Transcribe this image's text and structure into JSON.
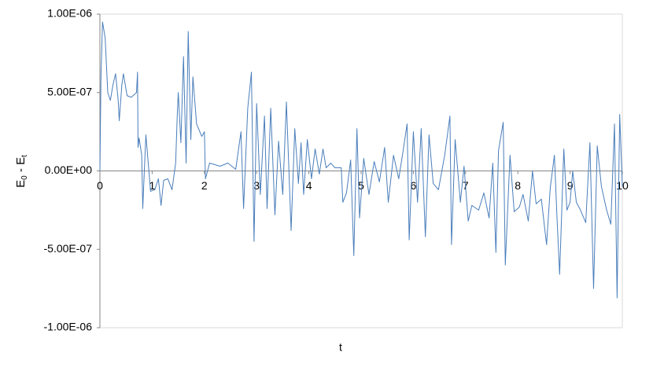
{
  "chart_data": {
    "type": "line",
    "xlabel": "t",
    "ylabel": [
      "E",
      "0",
      " - E",
      "t"
    ],
    "xlim": [
      0,
      10
    ],
    "xticks": [
      0,
      1,
      2,
      3,
      4,
      5,
      6,
      7,
      8,
      9,
      10
    ],
    "ylim": [
      -1e-06,
      1e-06
    ],
    "yticks": [
      {
        "value": -1e-06,
        "label": "-1.00E-06"
      },
      {
        "value": -5e-07,
        "label": "-5.00E-07"
      },
      {
        "value": 0,
        "label": "0.00E+00"
      },
      {
        "value": 5e-07,
        "label": "5.00E-07"
      },
      {
        "value": 1e-06,
        "label": "1.00E-06"
      }
    ],
    "grid": false,
    "series": [
      {
        "color": "#4a7ebb",
        "x": [
          0,
          0.02,
          0.05,
          0.1,
          0.15,
          0.2,
          0.25,
          0.3,
          0.35,
          0.37,
          0.42,
          0.45,
          0.52,
          0.6,
          0.7,
          0.72,
          0.73,
          0.75,
          0.8,
          0.82,
          0.85,
          0.88,
          0.93,
          0.97,
          1.05,
          1.12,
          1.17,
          1.22,
          1.3,
          1.38,
          1.45,
          1.48,
          1.5,
          1.55,
          1.6,
          1.65,
          1.69,
          1.74,
          1.78,
          1.85,
          1.95,
          2.0,
          2.02,
          2.1,
          2.3,
          2.45,
          2.6,
          2.7,
          2.75,
          2.83,
          2.9,
          2.95,
          3.0,
          3.07,
          3.15,
          3.2,
          3.27,
          3.35,
          3.42,
          3.5,
          3.57,
          3.66,
          3.73,
          3.8,
          3.85,
          3.9,
          3.97,
          4.05,
          4.12,
          4.2,
          4.27,
          4.33,
          4.42,
          4.5,
          4.62,
          4.65,
          4.72,
          4.8,
          4.86,
          4.92,
          4.97,
          5.05,
          5.15,
          5.25,
          5.35,
          5.45,
          5.52,
          5.62,
          5.72,
          5.8,
          5.88,
          5.92,
          6.0,
          6.08,
          6.15,
          6.23,
          6.3,
          6.38,
          6.48,
          6.6,
          6.7,
          6.73,
          6.8,
          6.9,
          6.97,
          7.05,
          7.12,
          7.25,
          7.35,
          7.45,
          7.52,
          7.58,
          7.63,
          7.72,
          7.76,
          7.85,
          7.93,
          8.03,
          8.1,
          8.2,
          8.28,
          8.35,
          8.45,
          8.55,
          8.62,
          8.7,
          8.75,
          8.8,
          8.88,
          8.94,
          9.0,
          9.05,
          9.12,
          9.2,
          9.3,
          9.38,
          9.45,
          9.52,
          9.6,
          9.7,
          9.78,
          9.85,
          9.9,
          9.95,
          10.0
        ],
        "values": [
          0,
          6e-07,
          9.5e-07,
          8.5e-07,
          5e-07,
          4.5e-07,
          5.5e-07,
          6.2e-07,
          4.5e-07,
          3.2e-07,
          5.5e-07,
          6.2e-07,
          4.8e-07,
          4.7e-07,
          5e-07,
          6.3e-07,
          1.5e-07,
          2.1e-07,
          1e-07,
          -2.4e-07,
          0,
          2.3e-07,
          3e-08,
          -1.3e-07,
          -1.2e-07,
          -5e-08,
          -2.2e-07,
          -6e-08,
          -5e-08,
          -1.2e-07,
          5e-08,
          3.5e-07,
          5e-07,
          1.8e-07,
          7.3e-07,
          5e-08,
          8.9e-07,
          2e-07,
          6e-07,
          3e-07,
          2.2e-07,
          2.5e-07,
          -5e-08,
          5e-08,
          3e-08,
          5e-08,
          1e-08,
          2.5e-07,
          -2.4e-07,
          4e-07,
          6.3e-07,
          -4.5e-07,
          4.3e-07,
          -1.5e-07,
          3.5e-07,
          -2.4e-07,
          4e-07,
          -2.8e-07,
          1.9e-07,
          -1.5e-07,
          4.4e-07,
          -3.8e-07,
          2.7e-07,
          -8e-08,
          1.8e-07,
          -1.5e-07,
          2e-07,
          -5e-08,
          1.4e-07,
          -2e-08,
          1.4e-07,
          2e-08,
          5e-08,
          2e-08,
          2e-08,
          -2e-07,
          -1.4e-07,
          7e-08,
          -5.4e-07,
          2.7e-07,
          -3e-07,
          8e-08,
          -1.5e-07,
          6e-08,
          -7e-08,
          1.5e-07,
          -2e-07,
          1e-07,
          -5e-08,
          1.2e-07,
          3e-07,
          -4.4e-07,
          2.5e-07,
          -2e-07,
          2.7e-07,
          -4.2e-07,
          2.3e-07,
          -8e-08,
          -1.2e-07,
          1e-07,
          3.5e-07,
          -4.7e-07,
          2e-07,
          -2e-07,
          3e-08,
          -3.2e-07,
          -2.2e-07,
          -2.5e-07,
          -1.4e-07,
          -3e-07,
          5e-08,
          -5.2e-07,
          1.3e-07,
          3.1e-07,
          -6e-07,
          1e-07,
          -2.6e-07,
          -2.3e-07,
          -1.5e-07,
          -3.2e-07,
          0,
          -2.1e-07,
          -1.8e-07,
          -4.7e-07,
          -1.1e-07,
          1e-07,
          -3e-07,
          -6.6e-07,
          1.4e-07,
          -2.5e-07,
          -2e-07,
          0,
          -2e-07,
          -2.5e-07,
          -3.3e-07,
          1.8e-07,
          -7.5e-07,
          1.6e-07,
          -1e-07,
          -2.5e-07,
          -3.4e-07,
          3e-07,
          -8.1e-07,
          3.6e-07,
          -1e-07
        ]
      }
    ]
  }
}
